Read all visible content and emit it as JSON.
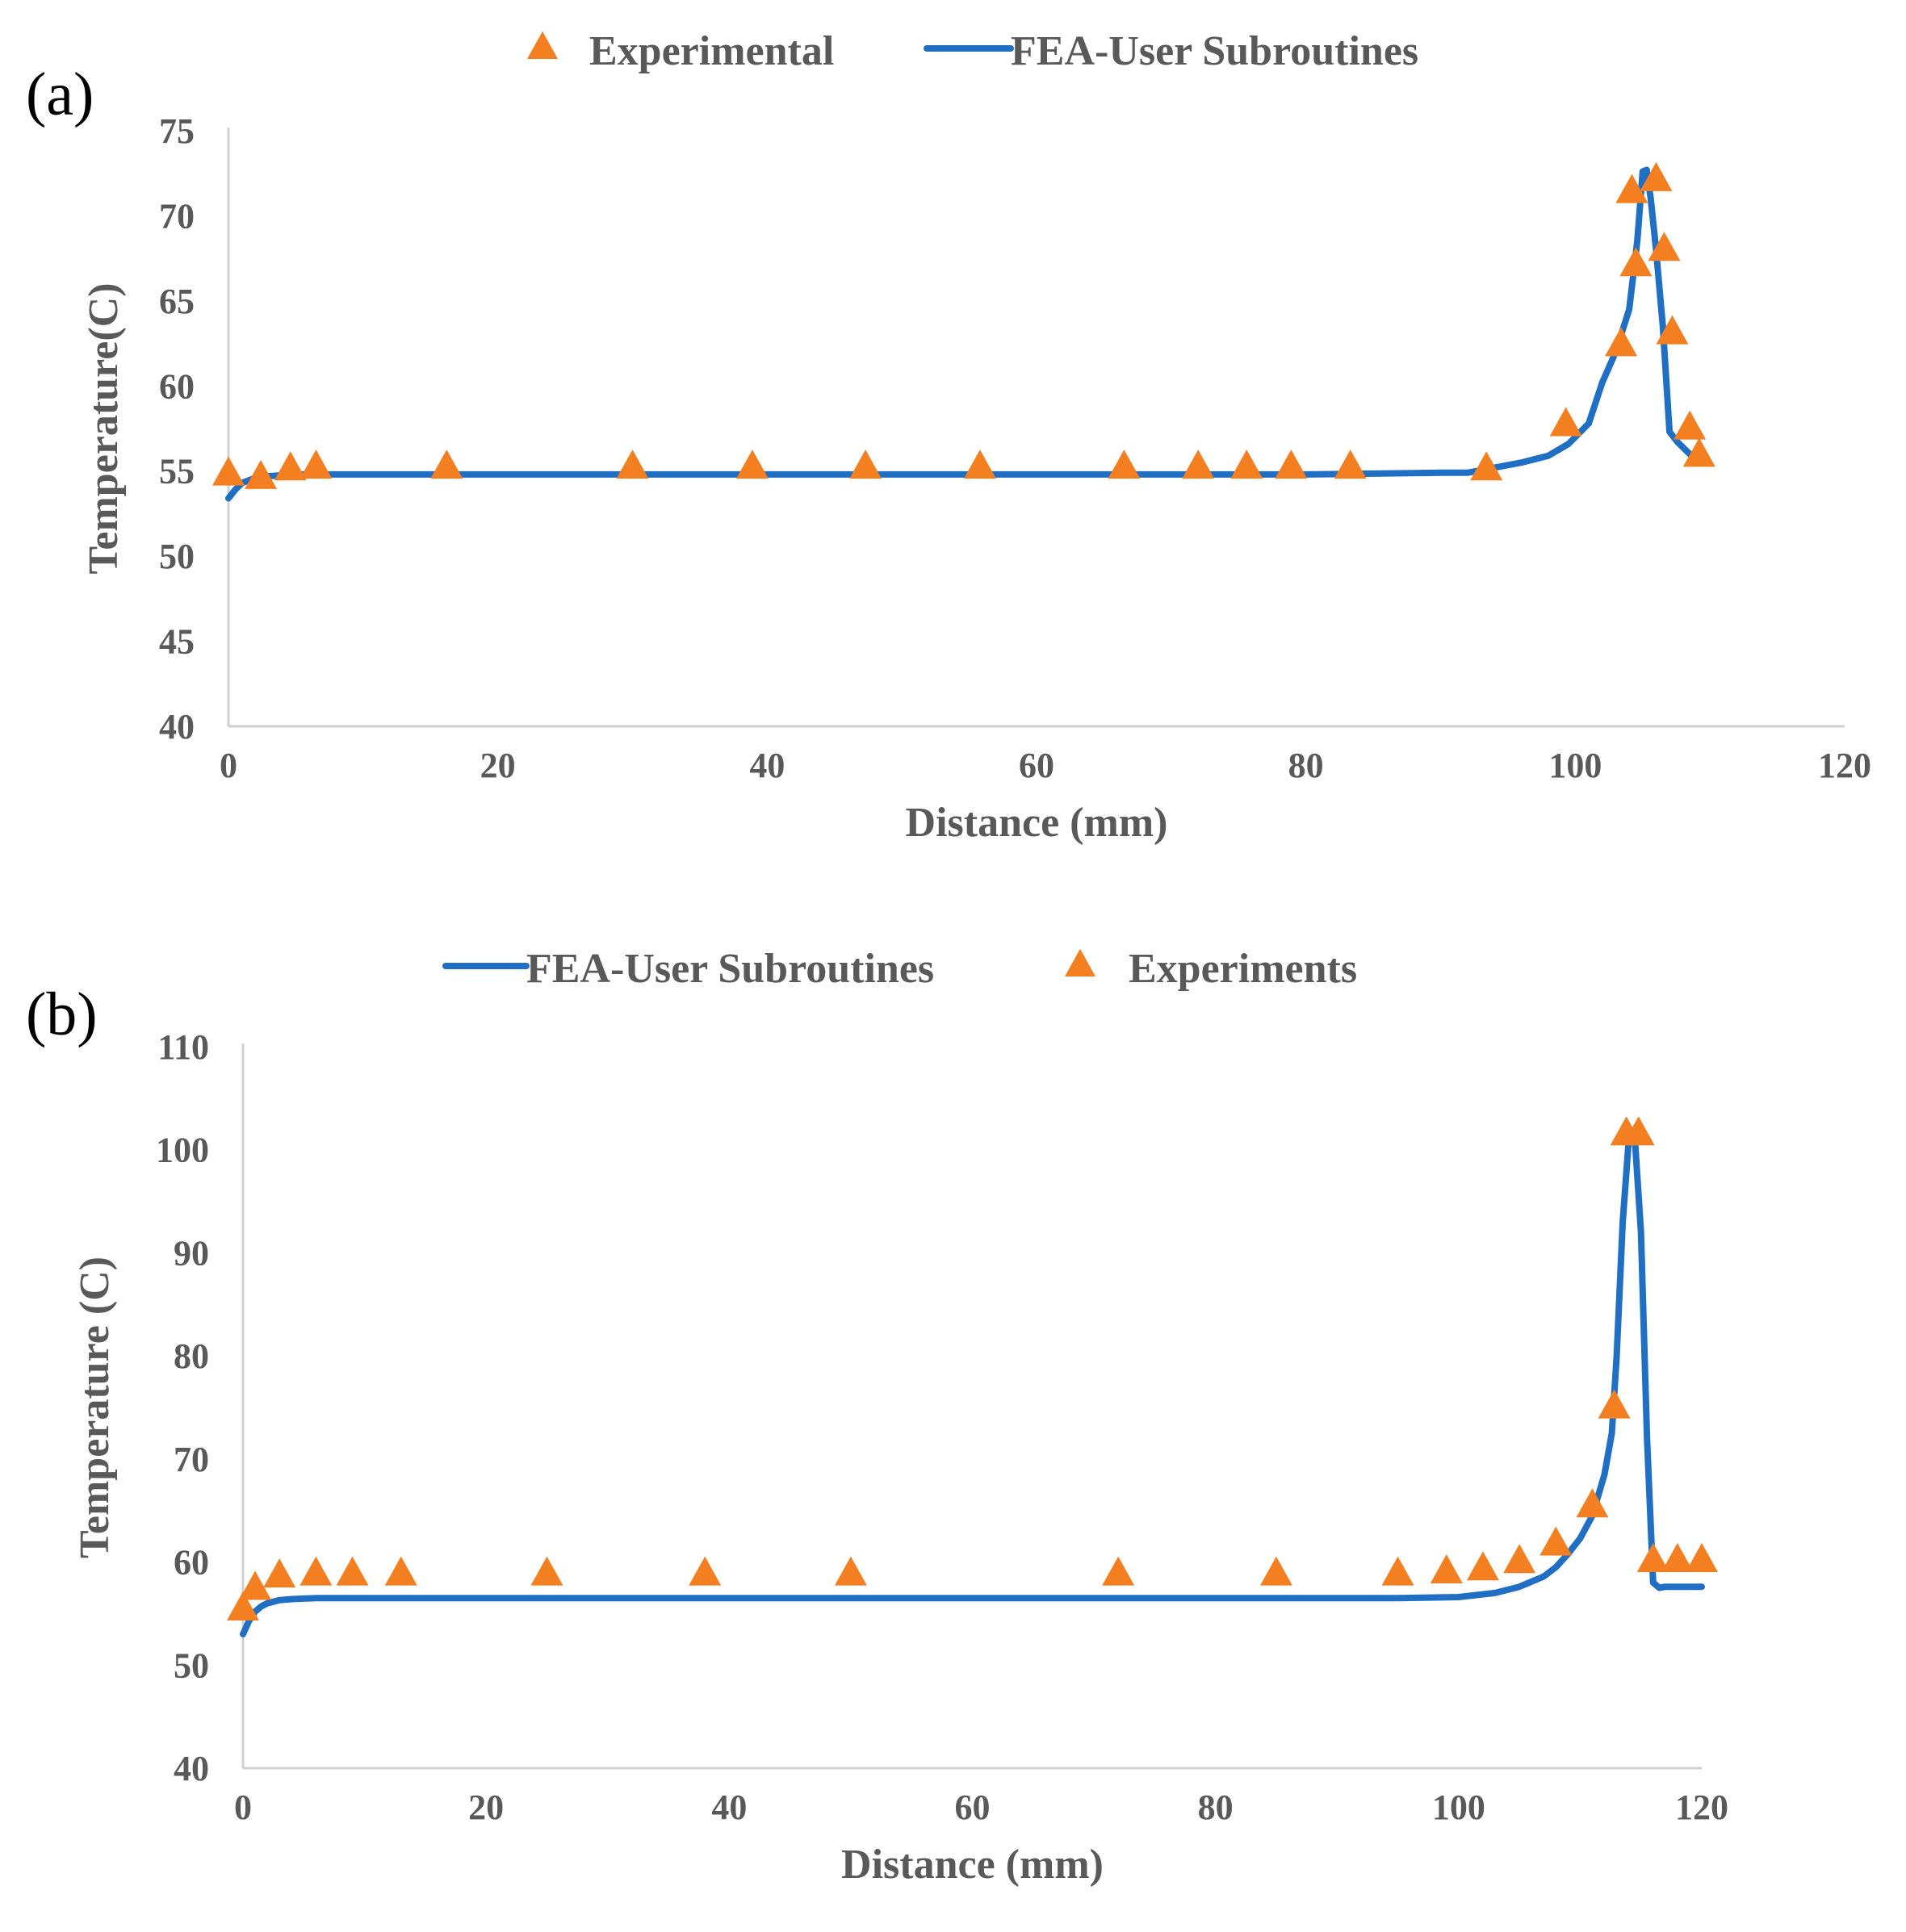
{
  "colors": {
    "simulation": "#1f6fc5",
    "experiment": "#f47f20",
    "axis": "#d0d0d0",
    "text": "#595959"
  },
  "chart_data": [
    {
      "panel_label": "(a)",
      "type": "line",
      "title": "",
      "xlabel": "Distance (mm)",
      "ylabel": "Temperature(C)",
      "xlim": [
        0,
        120
      ],
      "ylim": [
        40,
        75
      ],
      "x_ticks": [
        0,
        20,
        40,
        60,
        80,
        100,
        120
      ],
      "y_ticks": [
        40,
        45,
        50,
        55,
        60,
        65,
        70,
        75
      ],
      "grid": false,
      "legend_position": "top-center",
      "legend": [
        {
          "name": "Experimental",
          "marker": "triangle"
        },
        {
          "name": "FEA-User Subroutines",
          "marker": "line"
        }
      ],
      "series": [
        {
          "name": "Experimental",
          "kind": "scatter",
          "marker": "triangle",
          "x": [
            0,
            2.4,
            4.6,
            6.5,
            16.2,
            30,
            38.9,
            47.3,
            55.8,
            66.5,
            72,
            75.6,
            78.9,
            83.3,
            93.4,
            99.3,
            103.4,
            104.2,
            104.5,
            106,
            106.6,
            107.2,
            108.5,
            109.2
          ],
          "y": [
            54.8,
            54.6,
            55.1,
            55.2,
            55.2,
            55.2,
            55.2,
            55.2,
            55.2,
            55.2,
            55.2,
            55.2,
            55.2,
            55.2,
            55.1,
            57.7,
            62.4,
            71.4,
            67.1,
            72.1,
            68,
            63.1,
            57.5,
            55.9
          ]
        },
        {
          "name": "FEA-User Subroutines",
          "kind": "line",
          "x": [
            0,
            0.5,
            1,
            2,
            3,
            5,
            10,
            20,
            40,
            60,
            80,
            90,
            92,
            94,
            96,
            98,
            99.5,
            101,
            102,
            103,
            104,
            104.6,
            105,
            105.3,
            105.6,
            106,
            106.5,
            107,
            107.6,
            108.5,
            109.3
          ],
          "y": [
            53.4,
            53.9,
            54.3,
            54.6,
            54.7,
            54.8,
            54.8,
            54.8,
            54.8,
            54.8,
            54.8,
            54.9,
            54.9,
            55.2,
            55.5,
            55.9,
            56.6,
            57.8,
            60.2,
            62,
            64.5,
            68.5,
            72.6,
            72.7,
            71,
            68,
            63.5,
            57.3,
            56.7,
            56,
            55.7
          ]
        }
      ]
    },
    {
      "panel_label": "(b)",
      "type": "line",
      "title": "",
      "xlabel": "Distance (mm)",
      "ylabel": "Temperature (C)",
      "xlim": [
        0,
        120
      ],
      "ylim": [
        40,
        110
      ],
      "x_ticks": [
        0,
        20,
        40,
        60,
        80,
        100,
        120
      ],
      "y_ticks": [
        40,
        50,
        60,
        70,
        80,
        90,
        100,
        110
      ],
      "grid": false,
      "legend_position": "top-center",
      "legend": [
        {
          "name": "FEA-User Subroutines",
          "marker": "line"
        },
        {
          "name": "Experiments",
          "marker": "triangle"
        }
      ],
      "series": [
        {
          "name": "FEA-User Subroutines",
          "kind": "line",
          "x": [
            0,
            0.5,
            1,
            1.5,
            2,
            3,
            4,
            6,
            10,
            20,
            40,
            60,
            80,
            95,
            100,
            103,
            105,
            107,
            108,
            109,
            110,
            111,
            112,
            112.6,
            113,
            113.5,
            114,
            114.5,
            115,
            115.5,
            116,
            116.5,
            117,
            118,
            120
          ],
          "y": [
            53,
            54.3,
            55.2,
            55.7,
            56,
            56.3,
            56.4,
            56.5,
            56.5,
            56.5,
            56.5,
            56.5,
            56.5,
            56.5,
            56.6,
            57,
            57.6,
            58.6,
            59.5,
            60.8,
            62.3,
            64.5,
            68.5,
            72.5,
            80,
            93,
            101,
            101,
            92,
            72,
            58,
            57.5,
            57.6,
            57.6,
            57.6
          ]
        },
        {
          "name": "Experiments",
          "kind": "scatter",
          "marker": "triangle",
          "x": [
            0,
            1,
            3,
            6,
            9,
            13,
            25,
            38,
            50,
            72,
            85,
            95,
            99,
            102,
            105,
            108,
            111,
            112.8,
            113.8,
            114.8,
            116,
            118,
            120
          ],
          "y": [
            55.4,
            57.4,
            58.6,
            58.8,
            58.8,
            58.8,
            58.8,
            58.8,
            58.8,
            58.8,
            58.8,
            58.8,
            59,
            59.3,
            60,
            61.7,
            65.4,
            75,
            101.5,
            101.5,
            60.1,
            60.1,
            60.1
          ]
        }
      ]
    }
  ]
}
